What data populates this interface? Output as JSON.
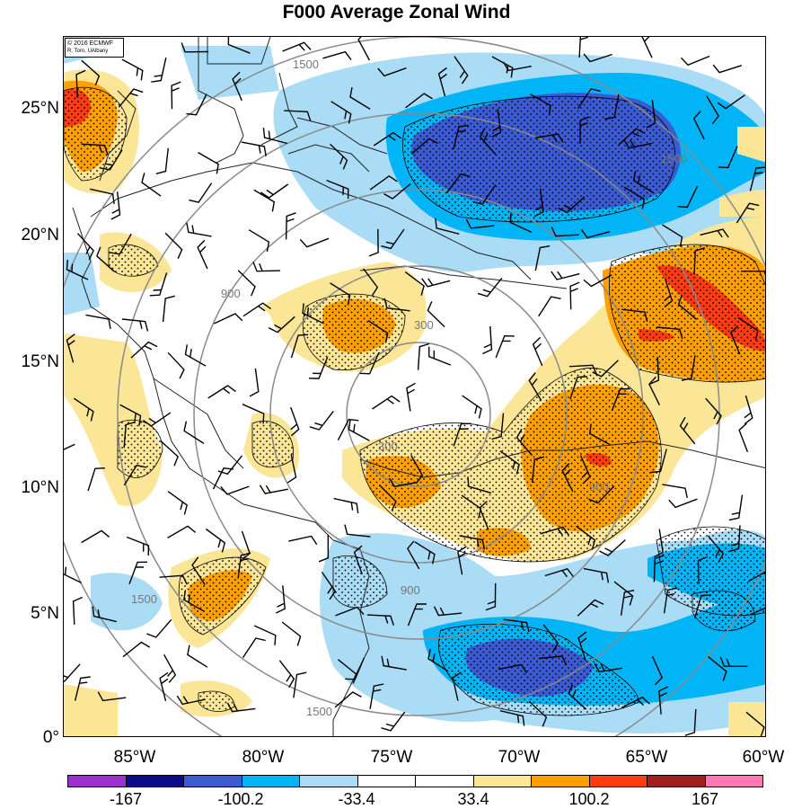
{
  "title": "F000 Average Zonal Wind",
  "credit": {
    "line1": "© 2016 ECMWF",
    "line2": "R. Torn, UAlbany"
  },
  "map": {
    "lat_labels": [
      "25°N",
      "20°N",
      "15°N",
      "10°N",
      "5°N",
      "0°"
    ],
    "lon_labels": [
      "85°W",
      "80°W",
      "75°W",
      "70°W",
      "65°W",
      "60°W"
    ],
    "lat_range": [
      0,
      27.5
    ],
    "lon_range": [
      -88.5,
      -60
    ],
    "range_ring_labels": [
      "300",
      "900",
      "1500"
    ]
  },
  "colorbar": {
    "colors": [
      "#9b30d0",
      "#0c0c8a",
      "#3c5ad2",
      "#00b4f5",
      "#aadcf5",
      "#ffffff",
      "#ffffff",
      "#fae696",
      "#ffa000",
      "#ff3c14",
      "#a01e1e",
      "#ff78b4"
    ],
    "labels": [
      "-167",
      "-100.2",
      "-33.4",
      "33.4",
      "100.2",
      "167"
    ]
  }
}
